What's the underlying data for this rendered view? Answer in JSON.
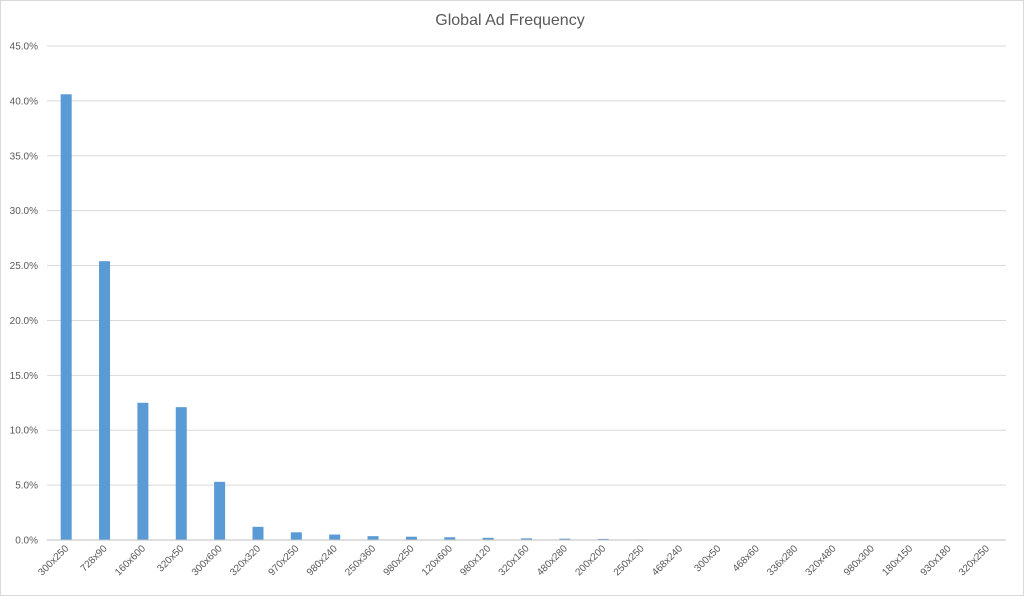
{
  "chart_data": {
    "type": "bar",
    "title": "Global Ad Frequency",
    "xlabel": "",
    "ylabel": "",
    "ylim": [
      0,
      45
    ],
    "y_ticks": [
      "0.0%",
      "5.0%",
      "10.0%",
      "15.0%",
      "20.0%",
      "25.0%",
      "30.0%",
      "35.0%",
      "40.0%",
      "45.0%"
    ],
    "grid": true,
    "legend": "none",
    "bar_color": "#5b9bd5",
    "categories": [
      "300x250",
      "728x90",
      "160x600",
      "320x50",
      "300x600",
      "320x320",
      "970x250",
      "980x240",
      "250x360",
      "980x250",
      "120x600",
      "980x120",
      "320x160",
      "480x280",
      "200x200",
      "250x250",
      "468x240",
      "300x50",
      "468x60",
      "336x280",
      "320x480",
      "980x300",
      "180x150",
      "930x180",
      "320x250"
    ],
    "values": [
      40.6,
      25.4,
      12.5,
      12.1,
      5.3,
      1.2,
      0.7,
      0.5,
      0.35,
      0.3,
      0.25,
      0.2,
      0.15,
      0.12,
      0.1,
      0.05,
      0.03,
      0.02,
      0.02,
      0.02,
      0.01,
      0.01,
      0.01,
      0.01,
      0.01
    ]
  }
}
